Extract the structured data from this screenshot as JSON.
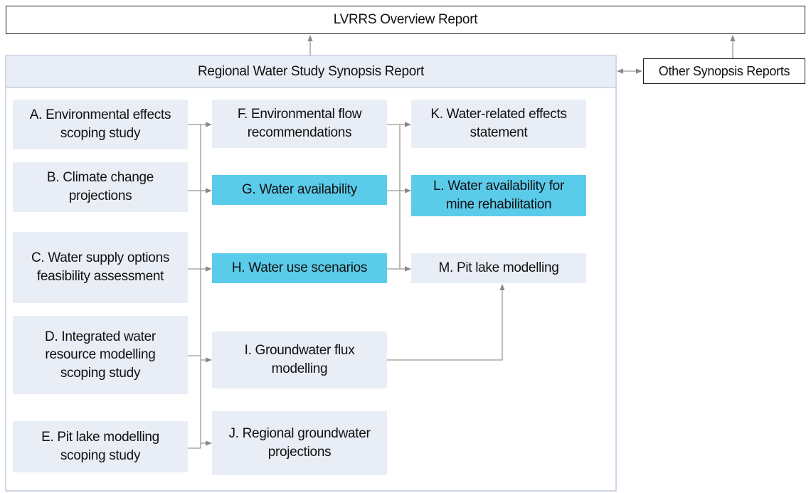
{
  "header": {
    "title": "LVRRS Overview Report"
  },
  "synopsis": {
    "title": "Regional Water Study Synopsis Report"
  },
  "other": {
    "title": "Other Synopsis Reports"
  },
  "nodes": [
    {
      "label": "A. Environmental effects scoping study"
    },
    {
      "label": "B. Climate change projections"
    },
    {
      "label": "C. Water supply options feasibility assessment"
    },
    {
      "label": "D. Integrated water resource modelling scoping study"
    },
    {
      "label": "E. Pit lake modelling scoping study"
    },
    {
      "label": "F. Environmental flow recommendations"
    },
    {
      "label": "G. Water availability"
    },
    {
      "label": "H. Water use scenarios"
    },
    {
      "label": "I. Groundwater flux modelling"
    },
    {
      "label": "J. Regional groundwater projections"
    },
    {
      "label": "K. Water-related effects statement"
    },
    {
      "label": "L. Water availability for mine rehabilitation"
    },
    {
      "label": "M. Pit lake modelling"
    }
  ]
}
